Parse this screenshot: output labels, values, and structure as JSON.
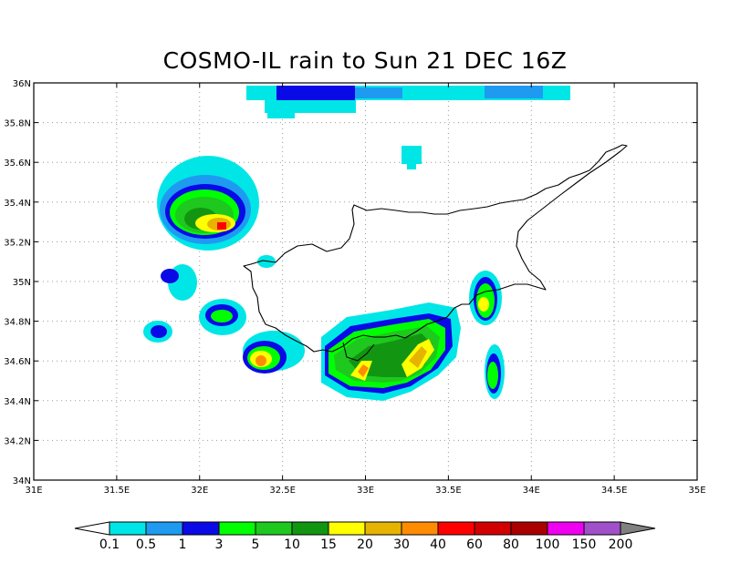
{
  "title": "COSMO-IL rain to Sun 21 DEC 16Z",
  "map": {
    "lon_range": [
      31,
      35
    ],
    "lat_range": [
      34,
      36
    ],
    "x_ticks": [
      "31E",
      "31.5E",
      "32E",
      "32.5E",
      "33E",
      "33.5E",
      "34E",
      "34.5E",
      "35E"
    ],
    "y_ticks": [
      "34N",
      "34.2N",
      "34.4N",
      "34.6N",
      "34.8N",
      "35N",
      "35.2N",
      "35.4N",
      "35.6N",
      "35.8N",
      "36N"
    ],
    "grid": "dotted",
    "coastline": "Cyprus"
  },
  "colorbar": {
    "labels": [
      "0.1",
      "0.5",
      "1",
      "3",
      "5",
      "10",
      "15",
      "20",
      "30",
      "40",
      "60",
      "80",
      "100",
      "150",
      "200"
    ],
    "colors": [
      "#00e6e6",
      "#1e9bf0",
      "#0a0ae6",
      "#00ff00",
      "#1ec81e",
      "#129612",
      "#ffff00",
      "#e6b400",
      "#ff8c00",
      "#ff0000",
      "#d20000",
      "#aa0000",
      "#f000f0",
      "#a050c8"
    ],
    "under_color": "#ffffff",
    "over_color": "#808080"
  }
}
